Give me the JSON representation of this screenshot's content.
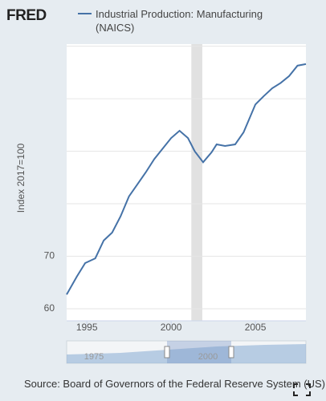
{
  "header": {
    "logo": "FRED"
  },
  "source": "Source: Board of Governors of the Federal Reserve System (US)",
  "navigator": {
    "labels": [
      "1975",
      "2000"
    ]
  },
  "chart_data": {
    "type": "line",
    "y_label": "Index 2017=100",
    "series": [
      {
        "name": "Industrial Production: Manufacturing (NAICS)",
        "color": "#4572a7",
        "x": [
          1993.8,
          1994.4,
          1994.9,
          1995.5,
          1996.0,
          1996.5,
          1997.0,
          1997.5,
          1998.0,
          1998.5,
          1999.0,
          1999.5,
          2000.0,
          2000.5,
          2001.0,
          2001.4,
          2001.9,
          2002.4,
          2002.7,
          2003.2,
          2003.8,
          2004.3,
          2005.0,
          2005.5,
          2006.0,
          2006.5,
          2007.0,
          2007.5,
          2008.0
        ],
        "values": [
          62.7,
          66.1,
          68.7,
          69.6,
          73.0,
          74.5,
          77.6,
          81.4,
          83.7,
          86.0,
          88.5,
          90.5,
          92.5,
          93.9,
          92.5,
          90.0,
          87.9,
          89.8,
          91.3,
          91.0,
          91.3,
          93.6,
          98.9,
          100.5,
          102.0,
          103.0,
          104.3,
          106.3,
          106.6
        ]
      }
    ],
    "recession": [
      2001.2,
      2001.85
    ],
    "xlim": [
      1993.8,
      2008.0
    ],
    "xticks": [
      1995,
      2000,
      2005
    ],
    "ylim": [
      57.7,
      110.4
    ],
    "yticks": [
      60,
      70,
      {
        "value": 80,
        "label": null
      },
      {
        "value": 90,
        "label": null
      },
      {
        "value": 100,
        "label": null
      },
      {
        "value": 110,
        "label": null
      }
    ],
    "grid": true
  }
}
